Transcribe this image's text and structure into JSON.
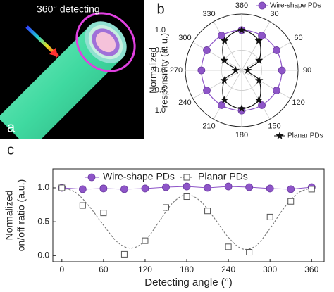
{
  "chart_data": [
    {
      "type": "illustration",
      "panel": "a",
      "annotation": "360° detecting"
    },
    {
      "type": "polar",
      "panel": "b",
      "ylabel": [
        "Normalized",
        "responsivity (a. u.)"
      ],
      "theta": [
        0,
        30,
        60,
        90,
        120,
        150,
        180,
        210,
        240,
        270,
        300,
        330
      ],
      "thetaticks": [
        360,
        30,
        60,
        90,
        120,
        150,
        180,
        210,
        240,
        270,
        300,
        330
      ],
      "rlim": [
        0,
        1.4
      ],
      "rticks": [
        {
          "value": 0,
          "label": "0.0"
        },
        {
          "value": 0.5,
          "label": "0.5"
        },
        {
          "value": 1.0,
          "label": "1.0"
        }
      ],
      "series": [
        {
          "name": "Wire-shape PDs",
          "color": "#8e55c8",
          "marker": "circle",
          "values": [
            1.0,
            1.0,
            1.0,
            1.0,
            1.0,
            1.0,
            1.0,
            1.0,
            1.0,
            1.0,
            1.0,
            1.0
          ]
        },
        {
          "name": "Planar PDs",
          "color": "#111111",
          "marker": "star",
          "values": [
            1.0,
            0.85,
            0.5,
            0.15,
            0.5,
            0.85,
            0.95,
            0.85,
            0.5,
            0.15,
            0.5,
            0.85
          ]
        }
      ]
    },
    {
      "type": "line",
      "panel": "c",
      "xlabel": "Detecting angle (°)",
      "ylabel": [
        "Normalized",
        "on/off ratio (a.u.)"
      ],
      "x": [
        0,
        30,
        60,
        90,
        120,
        150,
        180,
        210,
        240,
        270,
        300,
        330,
        360
      ],
      "xlim": [
        -13,
        378
      ],
      "ylim": [
        -0.09,
        1.28
      ],
      "xticks": [
        0,
        60,
        120,
        180,
        240,
        300,
        360
      ],
      "yticks": [
        {
          "value": 0,
          "label": "0.0"
        },
        {
          "value": 0.5,
          "label": "0.5"
        },
        {
          "value": 1.0,
          "label": "1.0"
        }
      ],
      "series": [
        {
          "name": "Wire-shape PDs",
          "color": "#8e55c8",
          "marker": "circle",
          "values": [
            1.0,
            0.98,
            0.99,
            0.98,
            0.99,
            1.01,
            1.02,
            1.0,
            1.02,
            1.01,
            0.99,
            0.98,
            1.01
          ]
        },
        {
          "name": "Planar PDs",
          "color": "#555555",
          "marker": "square",
          "values": [
            1.0,
            0.74,
            0.63,
            0.02,
            0.22,
            0.71,
            0.87,
            0.66,
            0.13,
            0.05,
            0.57,
            0.8,
            0.98
          ],
          "fit": {
            "x": [
              0,
              20,
              40,
              60,
              80,
              100,
              120,
              140,
              160,
              180,
              200,
              220,
              240,
              260,
              280,
              300,
              320,
              340,
              360
            ],
            "values": [
              1.0,
              0.93,
              0.72,
              0.45,
              0.2,
              0.11,
              0.22,
              0.5,
              0.78,
              0.9,
              0.8,
              0.55,
              0.27,
              0.1,
              0.15,
              0.4,
              0.7,
              0.92,
              1.0
            ]
          }
        }
      ]
    }
  ]
}
